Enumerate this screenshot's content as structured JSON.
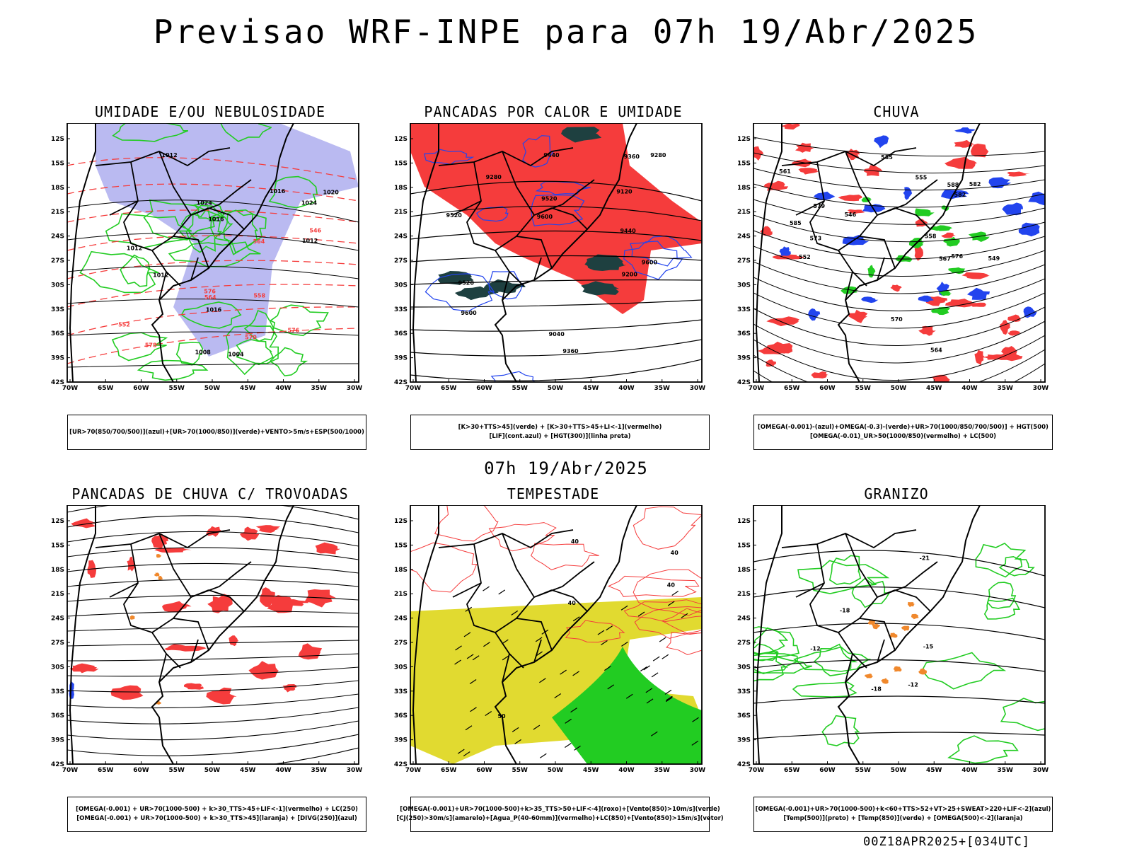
{
  "main_title": "Previsao WRF-INPE  para 07h 19/Abr/2025",
  "mid_date": "07h 19/Abr/2025",
  "footer": "00Z18APR2025+[034UTC]",
  "axes": {
    "lat_labels": [
      "12S",
      "15S",
      "18S",
      "21S",
      "24S",
      "27S",
      "30S",
      "33S",
      "36S",
      "39S",
      "42S"
    ],
    "lon_labels": [
      "70W",
      "65W",
      "60W",
      "55W",
      "50W",
      "45W",
      "40W",
      "35W",
      "30W"
    ]
  },
  "colors": {
    "blue_fill": "#b3b3f0",
    "red": "#f53c3c",
    "green": "#22cc22",
    "blue": "#2244ee",
    "dark_teal": "#1e4040",
    "yellow": "#e1da30",
    "orange": "#f0882c"
  },
  "panels": [
    {
      "title": "UMIDADE E/OU NEBULOSIDADE",
      "legend": [
        "[UR>70(850/700/500)](azul)+[UR>70(1000/850)](verde)+VENTO>5m/s+ESP(500/1000)"
      ],
      "contour_labels": [
        "1012",
        "1012",
        "1016",
        "1016",
        "1016",
        "1020",
        "1024",
        "1024",
        "1008",
        "1004",
        "576",
        "578",
        "576",
        "570",
        "564",
        "564",
        "558",
        "552",
        "546",
        "1012",
        "1012"
      ]
    },
    {
      "title": "PANCADAS POR CALOR E UMIDADE",
      "legend": [
        "[K>30+TTS>45](verde) + [K>30+TTS>45+LI<-1](vermelho)",
        "[LIF](cont.azul) + [HGT(300)](linha preta)"
      ],
      "contour_labels": [
        "9600",
        "9600",
        "9600",
        "9520",
        "9520",
        "9520",
        "9440",
        "9440",
        "9360",
        "9360",
        "9280",
        "9280",
        "9200",
        "9120",
        "9040"
      ]
    },
    {
      "title": "CHUVA",
      "legend": [
        "[OMEGA(-0.001)-(azul)+OMEGA(-0.3)-(verde)+UR>70(1000/850/700/500)] + HGT(500)",
        "[OMEGA(-0.01)_UR>50(1000/850)(vermelho) + LC(500)"
      ],
      "contour_labels": [
        "588",
        "585",
        "582",
        "579",
        "576",
        "573",
        "570",
        "567",
        "564",
        "561",
        "558",
        "555",
        "552",
        "549",
        "546",
        "585",
        "582"
      ]
    },
    {
      "title": "PANCADAS DE CHUVA C/ TROVOADAS",
      "legend": [
        "[OMEGA(-0.001) + UR>70(1000-500) + k>30_TTS>45+LIF<-1](vermelho) + LC(250)",
        "[OMEGA(-0.001) + UR>70(1000-500) + k>30_TTS>45](laranja) + [DIVG(250)](azul)"
      ],
      "contour_labels": []
    },
    {
      "title": "TEMPESTADE",
      "legend": [
        "[OMEGA(-0.001)+UR>70(1000-500)+k>35_TTS>50+LIF<-4](roxo)+[Vento(850)>10m/s](verde)",
        "[CJ(250)>30m/s](amarelo)+[Agua_P(40-60mm)](vermelho)+LC(850)+[Vento(850)>15m/s](vetor)"
      ],
      "contour_labels": [
        "50",
        "40",
        "40",
        "40",
        "40"
      ]
    },
    {
      "title": "GRANIZO",
      "legend": [
        "[OMEGA(-0.001)+UR>70(1000-500)+k<60+TTS>52+VT>25+SWEAT>220+LIF<-2](azul)",
        "[Temp(500)](preto) + [Temp(850)](verde) + [OMEGA(500)<-2](laranja)"
      ],
      "contour_labels": [
        "-12",
        "-12",
        "-15",
        "-18",
        "-21",
        "-18"
      ]
    }
  ]
}
